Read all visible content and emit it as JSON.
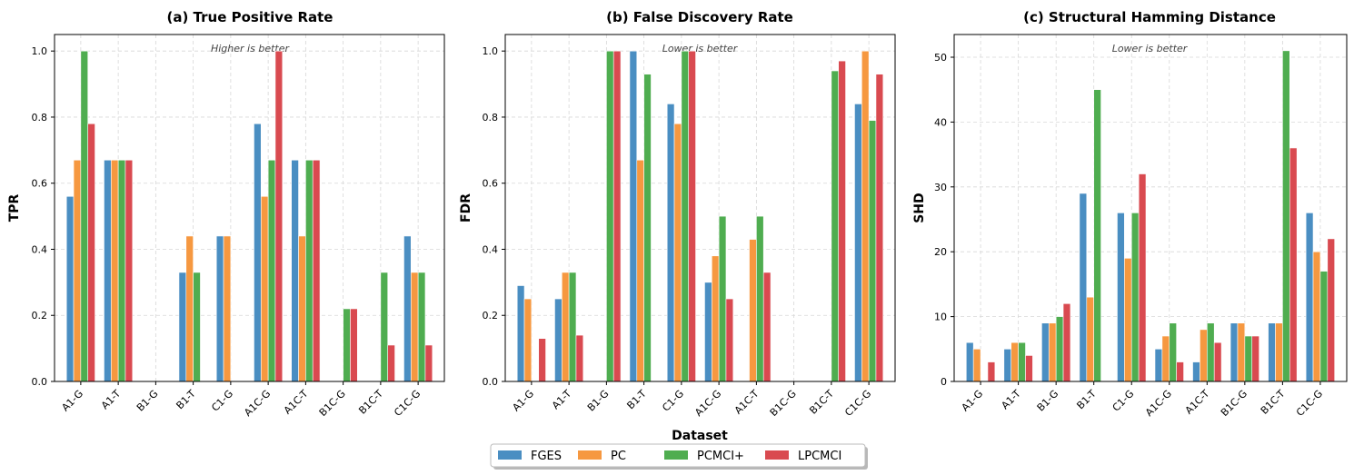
{
  "shared": {
    "xlabel": "Dataset",
    "legend": [
      "FGES",
      "PC",
      "PCMCI+",
      "LPCMCI"
    ],
    "colors": [
      "#4a8ec2",
      "#f69840",
      "#4fad50",
      "#d94a50"
    ]
  },
  "chart_data": [
    {
      "type": "bar",
      "title": "(a) True Positive Rate",
      "annotation": "Higher is better",
      "ylabel": "TPR",
      "xlabel": "Dataset",
      "ylim": [
        0,
        1.05
      ],
      "yticks": [
        "0.0",
        "0.2",
        "0.4",
        "0.6",
        "0.8",
        "1.0"
      ],
      "categories": [
        "A1-G",
        "A1-T",
        "B1-G",
        "B1-T",
        "C1-G",
        "A1C-G",
        "A1C-T",
        "B1C-G",
        "B1C-T",
        "C1C-G"
      ],
      "series": [
        {
          "name": "FGES",
          "values": [
            0.56,
            0.67,
            0,
            0.33,
            0.44,
            0.78,
            0.67,
            0,
            0,
            0.44
          ]
        },
        {
          "name": "PC",
          "values": [
            0.67,
            0.67,
            0,
            0.44,
            0.44,
            0.56,
            0.44,
            0,
            0,
            0.33
          ]
        },
        {
          "name": "PCMCI+",
          "values": [
            1.0,
            0.67,
            0,
            0.33,
            0,
            0.67,
            0.67,
            0.22,
            0.33,
            0.33
          ]
        },
        {
          "name": "LPCMCI",
          "values": [
            0.78,
            0.67,
            0,
            0,
            0,
            1.0,
            0.67,
            0.22,
            0.11,
            0.11
          ]
        }
      ]
    },
    {
      "type": "bar",
      "title": "(b) False Discovery Rate",
      "annotation": "Lower is better",
      "ylabel": "FDR",
      "xlabel": "Dataset",
      "ylim": [
        0,
        1.05
      ],
      "yticks": [
        "0.0",
        "0.2",
        "0.4",
        "0.6",
        "0.8",
        "1.0"
      ],
      "categories": [
        "A1-G",
        "A1-T",
        "B1-G",
        "B1-T",
        "C1-G",
        "A1C-G",
        "A1C-T",
        "B1C-G",
        "B1C-T",
        "C1C-G"
      ],
      "series": [
        {
          "name": "FGES",
          "values": [
            0.29,
            0.25,
            0,
            1.0,
            0.84,
            0.3,
            0,
            0,
            0,
            0.84
          ]
        },
        {
          "name": "PC",
          "values": [
            0.25,
            0.33,
            0,
            0.67,
            0.78,
            0.38,
            0.43,
            0,
            0,
            1.0
          ]
        },
        {
          "name": "PCMCI+",
          "values": [
            0,
            0.33,
            1.0,
            0.93,
            1.0,
            0.5,
            0.5,
            0,
            0.94,
            0.79
          ]
        },
        {
          "name": "LPCMCI",
          "values": [
            0.13,
            0.14,
            1.0,
            0,
            1.0,
            0.25,
            0.33,
            0,
            0.97,
            0.93
          ]
        }
      ]
    },
    {
      "type": "bar",
      "title": "(c) Structural Hamming Distance",
      "annotation": "Lower is better",
      "ylabel": "SHD",
      "xlabel": "Dataset",
      "ylim": [
        0,
        53.5
      ],
      "yticks": [
        "0",
        "10",
        "20",
        "30",
        "40",
        "50"
      ],
      "categories": [
        "A1-G",
        "A1-T",
        "B1-G",
        "B1-T",
        "C1-G",
        "A1C-G",
        "A1C-T",
        "B1C-G",
        "B1C-T",
        "C1C-G"
      ],
      "series": [
        {
          "name": "FGES",
          "values": [
            6,
            5,
            9,
            29,
            26,
            5,
            3,
            9,
            9,
            26
          ]
        },
        {
          "name": "PC",
          "values": [
            5,
            6,
            9,
            13,
            19,
            7,
            8,
            9,
            9,
            20
          ]
        },
        {
          "name": "PCMCI+",
          "values": [
            0,
            6,
            10,
            45,
            26,
            9,
            9,
            7,
            51,
            17
          ]
        },
        {
          "name": "LPCMCI",
          "values": [
            3,
            4,
            12,
            0,
            32,
            3,
            6,
            7,
            36,
            22
          ]
        }
      ]
    }
  ]
}
